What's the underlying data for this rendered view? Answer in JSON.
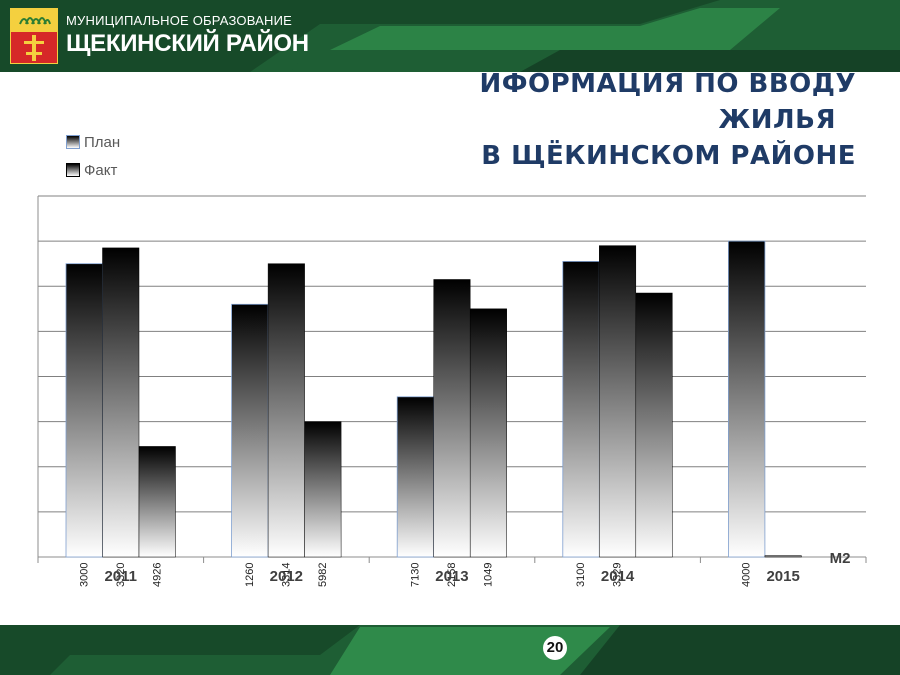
{
  "header": {
    "org_line1": "МУНИЦИПАЛЬНОЕ ОБРАЗОВАНИЕ",
    "org_line2": "ЩЕКИНСКИЙ РАЙОН"
  },
  "title": {
    "line1": "ИФОРМАЦИЯ ПО ВВОДУ",
    "line2": "ЖИЛЬЯ",
    "line3": "В ЩЁКИНСКОМ  РАЙОНЕ"
  },
  "legend": {
    "plan": "План",
    "fact": "Факт"
  },
  "page_number": "20",
  "colors": {
    "green_dark": "#1e5e34",
    "green_light": "#2f8a4a",
    "title_blue": "#1f3b66",
    "gridline": "#808080"
  },
  "chart_data": {
    "type": "bar",
    "title": "",
    "xlabel": "",
    "ylabel": "",
    "unit_label": "М2",
    "categories": [
      "2011",
      "2012",
      "2013",
      "2014",
      "2015"
    ],
    "bars_per_category": 3,
    "bar_values": [
      [
        65.0,
        68.5,
        24.5
      ],
      [
        56.0,
        65.0,
        30.0
      ],
      [
        35.5,
        61.5,
        55.0
      ],
      [
        65.5,
        69.0,
        58.5
      ],
      [
        70.0,
        0.3
      ]
    ],
    "bar_number_labels": [
      [
        "3000",
        "3320",
        "4926"
      ],
      [
        "1260",
        "3314",
        "5982"
      ],
      [
        "7130",
        "2158",
        "1049"
      ],
      [
        "3100",
        "3329",
        ""
      ],
      [
        "4000",
        ""
      ]
    ],
    "ylim": [
      0,
      80
    ],
    "gridlines": 8,
    "y_tick_labels_shown": false,
    "legend_position": "top-left"
  }
}
